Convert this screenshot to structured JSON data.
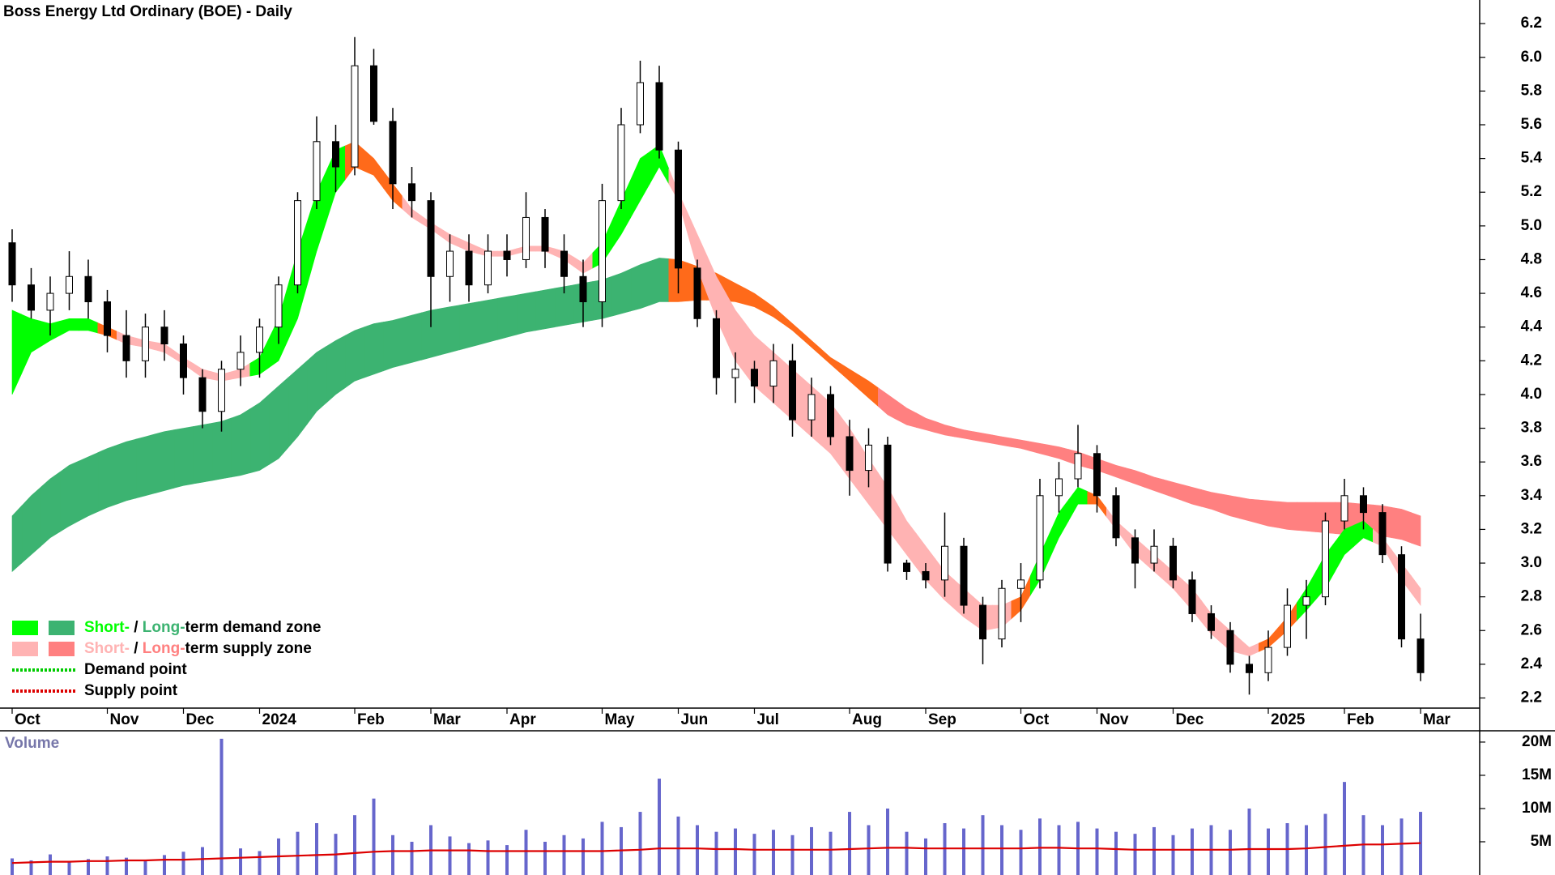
{
  "chart_data": [
    {
      "type": "candlestick",
      "title": "Boss Energy Ltd Ordinary (BOE) - Daily",
      "categories": [
        "Oct",
        null,
        null,
        null,
        null,
        "Nov",
        null,
        null,
        null,
        "Dec",
        null,
        null,
        null,
        "2024",
        null,
        null,
        null,
        null,
        "Feb",
        null,
        null,
        null,
        "Mar",
        null,
        null,
        null,
        "Apr",
        null,
        null,
        null,
        null,
        "May",
        null,
        null,
        null,
        "Jun",
        null,
        null,
        null,
        "Jul",
        null,
        null,
        null,
        null,
        "Aug",
        null,
        null,
        null,
        "Sep",
        null,
        null,
        null,
        null,
        "Oct",
        null,
        null,
        null,
        "Nov",
        null,
        null,
        null,
        "Dec",
        null,
        null,
        null,
        null,
        "2025",
        null,
        null,
        null,
        "Feb",
        null,
        null,
        null,
        "Mar"
      ],
      "open": [
        4.9,
        4.65,
        4.5,
        4.6,
        4.7,
        4.55,
        4.35,
        4.2,
        4.4,
        4.3,
        4.1,
        3.9,
        4.15,
        4.25,
        4.4,
        4.65,
        5.15,
        5.5,
        5.35,
        5.95,
        5.62,
        5.25,
        5.15,
        4.7,
        4.85,
        4.65,
        4.85,
        4.8,
        5.05,
        4.85,
        4.7,
        4.55,
        5.15,
        5.6,
        5.85,
        5.45,
        4.75,
        4.45,
        4.1,
        4.15,
        4.05,
        4.2,
        3.85,
        4.0,
        3.75,
        3.55,
        3.7,
        3.0,
        2.95,
        2.9,
        3.1,
        2.75,
        2.55,
        2.85,
        2.9,
        3.4,
        3.5,
        3.65,
        3.4,
        3.15,
        3.0,
        3.1,
        2.9,
        2.7,
        2.6,
        2.4,
        2.35,
        2.5,
        2.75,
        2.8,
        3.25,
        3.4,
        3.3,
        3.05,
        2.55
      ],
      "high": [
        4.98,
        4.75,
        4.7,
        4.85,
        4.8,
        4.62,
        4.5,
        4.48,
        4.5,
        4.35,
        4.15,
        4.2,
        4.35,
        4.45,
        4.7,
        5.2,
        5.65,
        5.6,
        6.12,
        6.05,
        5.7,
        5.35,
        5.2,
        4.95,
        4.95,
        4.95,
        4.95,
        5.2,
        5.1,
        4.95,
        4.8,
        5.25,
        5.7,
        5.98,
        5.95,
        5.5,
        4.8,
        4.5,
        4.25,
        4.2,
        4.3,
        4.3,
        4.1,
        4.05,
        3.85,
        3.8,
        3.75,
        3.02,
        3.0,
        3.3,
        3.15,
        2.8,
        2.9,
        3.0,
        3.5,
        3.6,
        3.82,
        3.7,
        3.45,
        3.2,
        3.2,
        3.15,
        2.95,
        2.75,
        2.65,
        2.45,
        2.6,
        2.85,
        2.9,
        3.3,
        3.5,
        3.45,
        3.35,
        3.1,
        2.7
      ],
      "low": [
        4.55,
        4.45,
        4.35,
        4.5,
        4.45,
        4.25,
        4.1,
        4.1,
        4.2,
        4.0,
        3.8,
        3.78,
        4.05,
        4.1,
        4.3,
        4.6,
        5.1,
        5.2,
        5.3,
        5.6,
        5.1,
        5.05,
        4.4,
        4.55,
        4.55,
        4.6,
        4.7,
        4.75,
        4.75,
        4.6,
        4.4,
        4.4,
        5.1,
        5.55,
        5.4,
        4.6,
        4.4,
        4.0,
        3.95,
        3.95,
        3.95,
        3.75,
        3.75,
        3.7,
        3.4,
        3.45,
        2.95,
        2.9,
        2.85,
        2.8,
        2.7,
        2.4,
        2.5,
        2.65,
        2.85,
        3.3,
        3.45,
        3.3,
        3.1,
        2.85,
        2.95,
        2.85,
        2.65,
        2.55,
        2.35,
        2.22,
        2.3,
        2.45,
        2.55,
        2.75,
        3.2,
        3.2,
        3.0,
        2.5,
        2.3
      ],
      "close": [
        4.65,
        4.5,
        4.6,
        4.7,
        4.55,
        4.35,
        4.2,
        4.4,
        4.3,
        4.1,
        3.9,
        4.15,
        4.25,
        4.4,
        4.65,
        5.15,
        5.5,
        5.35,
        5.95,
        5.62,
        5.25,
        5.15,
        4.7,
        4.85,
        4.65,
        4.85,
        4.8,
        5.05,
        4.85,
        4.7,
        4.55,
        5.15,
        5.6,
        5.85,
        5.45,
        4.75,
        4.45,
        4.1,
        4.15,
        4.05,
        4.2,
        3.85,
        4.0,
        3.75,
        3.55,
        3.7,
        3.0,
        2.95,
        2.9,
        3.1,
        2.75,
        2.55,
        2.85,
        2.9,
        3.4,
        3.5,
        3.65,
        3.4,
        3.15,
        3.0,
        3.1,
        2.9,
        2.7,
        2.6,
        2.4,
        2.35,
        2.5,
        2.75,
        2.8,
        3.25,
        3.4,
        3.3,
        3.05,
        2.55,
        2.35
      ],
      "up_color": "#ffffff",
      "down_color": "#000000",
      "bands": [
        {
          "upper": [
            3.28,
            3.4,
            3.5,
            3.58,
            3.63,
            3.68,
            3.72,
            3.75,
            3.78,
            3.8,
            3.82,
            3.84,
            3.88,
            3.95,
            4.05,
            4.15,
            4.25,
            4.32,
            4.38,
            4.42,
            4.44,
            4.47,
            4.5,
            4.52,
            4.54,
            4.56,
            4.58,
            4.6,
            4.62,
            4.64,
            4.66,
            4.68,
            4.72,
            4.77,
            4.81,
            4.8,
            4.76,
            4.72,
            4.66,
            4.6,
            4.52,
            4.42,
            4.32,
            4.22,
            4.15,
            4.08,
            4.0,
            3.92,
            3.86,
            3.82,
            3.79,
            3.77,
            3.75,
            3.73,
            3.71,
            3.69,
            3.66,
            3.62,
            3.58,
            3.55,
            3.51,
            3.48,
            3.45,
            3.42,
            3.4,
            3.38,
            3.37,
            3.36,
            3.36,
            3.36,
            3.36,
            3.35,
            3.34,
            3.32,
            3.28
          ],
          "lower": [
            2.95,
            3.05,
            3.15,
            3.22,
            3.28,
            3.33,
            3.37,
            3.4,
            3.43,
            3.46,
            3.48,
            3.5,
            3.52,
            3.55,
            3.62,
            3.75,
            3.9,
            4.0,
            4.08,
            4.12,
            4.16,
            4.19,
            4.22,
            4.25,
            4.28,
            4.31,
            4.34,
            4.37,
            4.39,
            4.41,
            4.43,
            4.45,
            4.48,
            4.51,
            4.55,
            4.55,
            4.56,
            4.56,
            4.55,
            4.52,
            4.46,
            4.38,
            4.28,
            4.18,
            4.08,
            3.98,
            3.88,
            3.82,
            3.79,
            3.76,
            3.74,
            3.72,
            3.7,
            3.68,
            3.65,
            3.62,
            3.58,
            3.55,
            3.51,
            3.47,
            3.43,
            3.39,
            3.35,
            3.32,
            3.28,
            3.25,
            3.22,
            3.2,
            3.19,
            3.18,
            3.17,
            3.17,
            3.16,
            3.14,
            3.1
          ],
          "colors": [
            "#3cb371",
            "#3cb371",
            "#3cb371",
            "#3cb371",
            "#3cb371",
            "#3cb371",
            "#3cb371",
            "#3cb371",
            "#3cb371",
            "#3cb371",
            "#3cb371",
            "#3cb371",
            "#3cb371",
            "#3cb371",
            "#3cb371",
            "#3cb371",
            "#3cb371",
            "#3cb371",
            "#3cb371",
            "#3cb371",
            "#3cb371",
            "#3cb371",
            "#3cb371",
            "#3cb371",
            "#3cb371",
            "#3cb371",
            "#3cb371",
            "#3cb371",
            "#3cb371",
            "#3cb371",
            "#3cb371",
            "#3cb371",
            "#3cb371",
            "#3cb371",
            "#3cb371",
            "#ff6a1a",
            "#ff6a1a",
            "#ff6a1a",
            "#ff6a1a",
            "#ff6a1a",
            "#ff6a1a",
            "#ff6a1a",
            "#ff6a1a",
            "#ff6a1a",
            "#ff6a1a",
            "#ff6a1a",
            "#ff8080",
            "#ff8080",
            "#ff8080",
            "#ff8080",
            "#ff8080",
            "#ff8080",
            "#ff8080",
            "#ff8080",
            "#ff8080",
            "#ff8080",
            "#ff8080",
            "#ff8080",
            "#ff8080",
            "#ff8080",
            "#ff8080",
            "#ff8080",
            "#ff8080",
            "#ff8080",
            "#ff8080",
            "#ff8080",
            "#ff8080",
            "#ff8080",
            "#ff8080",
            "#ff8080",
            "#ff8080",
            "#ff8080",
            "#ff8080",
            "#ff8080",
            "#ff8080"
          ]
        },
        {
          "upper": [
            4.5,
            4.45,
            4.42,
            4.45,
            4.45,
            4.4,
            4.35,
            4.32,
            4.3,
            4.22,
            4.15,
            4.12,
            4.15,
            4.22,
            4.45,
            4.85,
            5.2,
            5.45,
            5.5,
            5.4,
            5.25,
            5.1,
            5.02,
            4.95,
            4.9,
            4.85,
            4.85,
            4.88,
            4.88,
            4.85,
            4.78,
            4.9,
            5.15,
            5.4,
            5.48,
            5.2,
            4.95,
            4.7,
            4.5,
            4.35,
            4.25,
            4.15,
            4.05,
            3.95,
            3.8,
            3.62,
            3.45,
            3.25,
            3.1,
            2.95,
            2.85,
            2.75,
            2.75,
            2.8,
            3.05,
            3.3,
            3.45,
            3.4,
            3.25,
            3.15,
            3.05,
            2.95,
            2.85,
            2.7,
            2.6,
            2.5,
            2.55,
            2.68,
            2.85,
            3.05,
            3.2,
            3.25,
            3.15,
            3.0,
            2.85
          ],
          "lower": [
            4.0,
            4.25,
            4.32,
            4.38,
            4.38,
            4.35,
            4.3,
            4.28,
            4.25,
            4.18,
            4.1,
            4.08,
            4.1,
            4.12,
            4.2,
            4.45,
            4.85,
            5.2,
            5.35,
            5.3,
            5.15,
            5.05,
            4.98,
            4.9,
            4.85,
            4.82,
            4.82,
            4.85,
            4.85,
            4.8,
            4.72,
            4.78,
            4.95,
            5.15,
            5.35,
            5.15,
            4.75,
            4.45,
            4.2,
            4.05,
            3.95,
            3.85,
            3.75,
            3.65,
            3.5,
            3.35,
            3.2,
            3.05,
            2.9,
            2.78,
            2.68,
            2.6,
            2.62,
            2.72,
            2.9,
            3.15,
            3.35,
            3.35,
            3.2,
            3.05,
            2.95,
            2.85,
            2.72,
            2.58,
            2.48,
            2.45,
            2.5,
            2.6,
            2.72,
            2.85,
            3.05,
            3.15,
            3.1,
            2.9,
            2.75
          ],
          "colors": [
            "#00ff00",
            "#00ff00",
            "#00ff00",
            "#00ff00",
            "#00ff00",
            "#ff6a1a",
            "#ffb3b3",
            "#ffb3b3",
            "#ffb3b3",
            "#ffb3b3",
            "#ffb3b3",
            "#ffb3b3",
            "#ffb3b3",
            "#00ff00",
            "#00ff00",
            "#00ff00",
            "#00ff00",
            "#00ff00",
            "#ff6a1a",
            "#ff6a1a",
            "#ff6a1a",
            "#ffb3b3",
            "#ffb3b3",
            "#ffb3b3",
            "#ffb3b3",
            "#ffb3b3",
            "#ffb3b3",
            "#ffb3b3",
            "#ffb3b3",
            "#ffb3b3",
            "#ffb3b3",
            "#00ff00",
            "#00ff00",
            "#00ff00",
            "#00ff00",
            "#ffb3b3",
            "#ffb3b3",
            "#ffb3b3",
            "#ffb3b3",
            "#ffb3b3",
            "#ffb3b3",
            "#ffb3b3",
            "#ffb3b3",
            "#ffb3b3",
            "#ffb3b3",
            "#ffb3b3",
            "#ffb3b3",
            "#ffb3b3",
            "#ffb3b3",
            "#ffb3b3",
            "#ffb3b3",
            "#ffb3b3",
            "#ffb3b3",
            "#ff6a1a",
            "#00ff00",
            "#00ff00",
            "#00ff00",
            "#ff6a1a",
            "#ffb3b3",
            "#ffb3b3",
            "#ffb3b3",
            "#ffb3b3",
            "#ffb3b3",
            "#ffb3b3",
            "#ffb3b3",
            "#ffb3b3",
            "#ff6a1a",
            "#ff6a1a",
            "#00ff00",
            "#00ff00",
            "#00ff00",
            "#00ff00",
            "#ffb3b3",
            "#ffb3b3",
            "#ffb3b3"
          ]
        }
      ],
      "ylim": [
        2.14,
        6.34
      ],
      "yticks": [
        2.2,
        2.4,
        2.6,
        2.8,
        {
          "value": 3,
          "label": "3.0"
        },
        3.2,
        3.4,
        3.6,
        3.8,
        {
          "value": 4,
          "label": "4.0"
        },
        4.2,
        4.4,
        4.6,
        4.8,
        {
          "value": 5,
          "label": "5.0"
        },
        5.2,
        5.4,
        5.6,
        5.8,
        {
          "value": 6,
          "label": "6.0"
        },
        6.2
      ],
      "legend": [
        {
          "swatches": [
            "#00ff00",
            "#3cb371"
          ],
          "parts": [
            {
              "text": "Short-",
              "color": "#00ff00"
            },
            {
              "text": " / "
            },
            {
              "text": "Long-",
              "color": "#3cb371"
            },
            {
              "text": "term demand zone"
            }
          ]
        },
        {
          "swatches": [
            "#ffb3b3",
            "#ff8080"
          ],
          "parts": [
            {
              "text": "Short-",
              "color": "#ffb3b3"
            },
            {
              "text": " / "
            },
            {
              "text": "Long-",
              "color": "#ff8080"
            },
            {
              "text": "term supply zone"
            }
          ]
        },
        {
          "line_color": "#00cc00",
          "parts": [
            {
              "text": "Demand point"
            }
          ]
        },
        {
          "line_color": "#dd0000",
          "parts": [
            {
              "text": "Supply point"
            }
          ]
        }
      ]
    },
    {
      "type": "bar",
      "title": "Volume",
      "color": "#6666cc",
      "values": [
        2500000,
        2200000,
        3100000,
        2000000,
        2400000,
        2800000,
        2600000,
        2300000,
        3000000,
        3500000,
        4200000,
        20500000,
        4000000,
        3600000,
        5500000,
        6500000,
        7800000,
        6200000,
        9000000,
        11500000,
        6000000,
        5000000,
        7500000,
        5800000,
        4800000,
        5200000,
        4500000,
        6800000,
        5000000,
        6000000,
        5500000,
        8000000,
        7200000,
        9500000,
        14500000,
        8800000,
        7500000,
        6500000,
        7000000,
        6200000,
        6800000,
        6000000,
        7200000,
        6500000,
        9500000,
        7500000,
        10000000,
        6500000,
        5500000,
        7800000,
        7000000,
        9000000,
        7500000,
        6800000,
        8500000,
        7500000,
        8000000,
        7000000,
        6500000,
        6200000,
        7200000,
        6000000,
        7000000,
        7500000,
        6800000,
        10000000,
        7000000,
        7800000,
        7500000,
        9200000,
        14000000,
        9000000,
        7500000,
        8500000,
        9500000
      ],
      "ma": {
        "color": "#dd0000",
        "values": [
          1800000,
          1900000,
          2000000,
          2000000,
          2100000,
          2100000,
          2200000,
          2200000,
          2300000,
          2300000,
          2400000,
          2500000,
          2600000,
          2700000,
          2800000,
          2900000,
          3000000,
          3100000,
          3300000,
          3500000,
          3600000,
          3600000,
          3700000,
          3700000,
          3700000,
          3600000,
          3600000,
          3600000,
          3600000,
          3600000,
          3600000,
          3600000,
          3700000,
          3800000,
          4000000,
          4000000,
          4000000,
          3900000,
          3900000,
          3800000,
          3800000,
          3800000,
          3800000,
          3800000,
          3900000,
          4000000,
          4100000,
          4100000,
          4000000,
          4000000,
          4000000,
          4000000,
          4000000,
          4000000,
          4100000,
          4100000,
          4000000,
          4000000,
          3900000,
          3800000,
          3800000,
          3800000,
          3800000,
          3800000,
          3800000,
          3900000,
          3900000,
          3900000,
          4000000,
          4200000,
          4400000,
          4600000,
          4600000,
          4700000,
          4800000
        ]
      },
      "ylim": [
        0,
        21700000
      ],
      "yticks": [
        {
          "value": 5000000,
          "label": "5M"
        },
        {
          "value": 10000000,
          "label": "10M"
        },
        {
          "value": 15000000,
          "label": "15M"
        },
        {
          "value": 20000000,
          "label": "20M"
        }
      ]
    }
  ]
}
